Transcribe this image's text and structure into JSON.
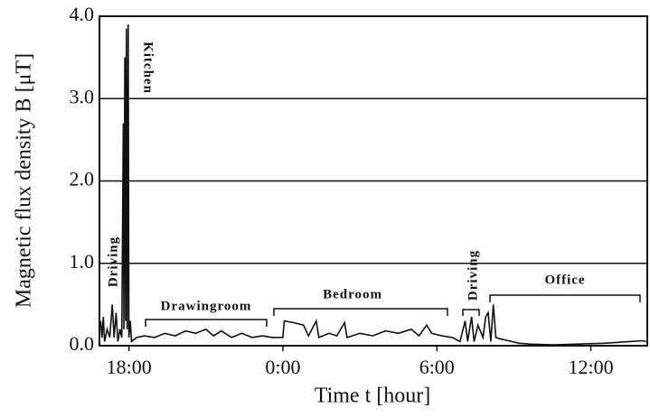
{
  "chart_data": {
    "type": "line",
    "xlabel": "Time t [hour]",
    "ylabel": "Magnetic flux density B [μT]",
    "xlim": [
      16.85,
      38.2
    ],
    "ylim": [
      0,
      4
    ],
    "xticks": [
      {
        "value": 18,
        "label": "18:00"
      },
      {
        "value": 24,
        "label": "0:00"
      },
      {
        "value": 30,
        "label": "6:00"
      },
      {
        "value": 36,
        "label": "12:00"
      }
    ],
    "yticks": [
      {
        "value": 0,
        "label": "0.0"
      },
      {
        "value": 1,
        "label": "1.0"
      },
      {
        "value": 2,
        "label": "2.0"
      },
      {
        "value": 3,
        "label": "3.0"
      },
      {
        "value": 4,
        "label": "4.0"
      }
    ],
    "grid": true,
    "annotations": [
      "Kitchen",
      "Driving",
      "Drawingroom",
      "Bedroom",
      "Driving",
      "Office"
    ],
    "x": [
      16.9,
      16.95,
      17.0,
      17.05,
      17.15,
      17.25,
      17.35,
      17.42,
      17.5,
      17.57,
      17.65,
      17.72,
      17.78,
      17.8,
      17.84,
      17.87,
      17.9,
      17.93,
      17.97,
      18.0,
      18.05,
      18.1,
      18.3,
      18.6,
      19.0,
      19.4,
      19.8,
      20.2,
      20.6,
      21.0,
      21.3,
      21.6,
      22.0,
      22.4,
      22.8,
      23.2,
      23.6,
      24.0,
      24.05,
      24.4,
      24.8,
      25.0,
      25.3,
      25.4,
      25.8,
      26.1,
      26.4,
      26.5,
      27.0,
      27.5,
      28.0,
      28.5,
      29.0,
      29.3,
      29.6,
      29.8,
      30.2,
      30.6,
      30.9,
      31.1,
      31.2,
      31.35,
      31.45,
      31.6,
      31.8,
      31.9,
      32.0,
      32.1,
      32.2,
      32.3,
      32.5,
      32.8,
      33.2,
      33.6,
      34.5,
      35.5,
      36.5,
      37.0,
      37.5,
      38.0,
      38.15
    ],
    "series": [
      {
        "color": "#111111",
        "values": [
          0.3,
          0.1,
          0.35,
          0.05,
          0.2,
          0.1,
          0.5,
          0.1,
          0.4,
          0.05,
          0.2,
          0.1,
          2.7,
          0.2,
          3.5,
          0.3,
          3.85,
          0.2,
          3.9,
          0.1,
          0.3,
          0.05,
          0.1,
          0.12,
          0.1,
          0.15,
          0.12,
          0.18,
          0.15,
          0.2,
          0.12,
          0.18,
          0.1,
          0.15,
          0.1,
          0.12,
          0.1,
          0.1,
          0.3,
          0.28,
          0.25,
          0.12,
          0.3,
          0.1,
          0.15,
          0.12,
          0.28,
          0.1,
          0.15,
          0.12,
          0.18,
          0.15,
          0.2,
          0.12,
          0.25,
          0.15,
          0.12,
          0.1,
          0.05,
          0.3,
          0.05,
          0.35,
          0.05,
          0.25,
          0.1,
          0.35,
          0.4,
          0.05,
          0.5,
          0.1,
          0.08,
          0.06,
          0.03,
          0.02,
          0.01,
          0.02,
          0.03,
          0.04,
          0.05,
          0.06,
          0.05
        ]
      }
    ]
  }
}
